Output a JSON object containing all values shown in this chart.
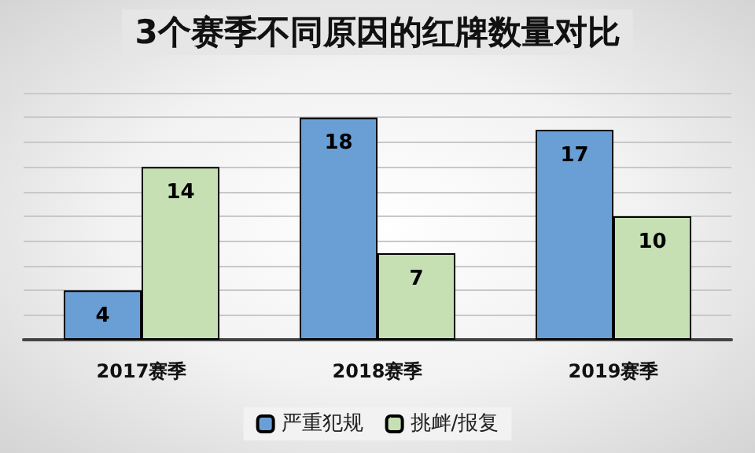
{
  "chart_data": {
    "type": "bar",
    "title": "3个赛季不同原因的红牌数量对比",
    "categories": [
      "2017赛季",
      "2018赛季",
      "2019赛季"
    ],
    "series": [
      {
        "name": "严重犯规",
        "color": "#6a9fd6",
        "values": [
          4,
          18,
          17
        ]
      },
      {
        "name": "挑衅/报复",
        "color": "#c6e0b4",
        "values": [
          14,
          7,
          10
        ]
      }
    ],
    "ylim": [
      0,
      20
    ],
    "yticks": [
      {
        "value": 0,
        "label": null
      },
      {
        "value": 2,
        "label": null
      },
      {
        "value": 4,
        "label": null
      },
      {
        "value": 6,
        "label": null
      },
      {
        "value": 8,
        "label": null
      },
      {
        "value": 10,
        "label": null
      },
      {
        "value": 12,
        "label": null
      },
      {
        "value": 14,
        "label": null
      },
      {
        "value": 16,
        "label": null
      },
      {
        "value": 18,
        "label": null
      },
      {
        "value": 20,
        "label": null
      }
    ],
    "tick_labels": "x",
    "grid": "y",
    "legend": "bottom",
    "data_labels": true
  }
}
